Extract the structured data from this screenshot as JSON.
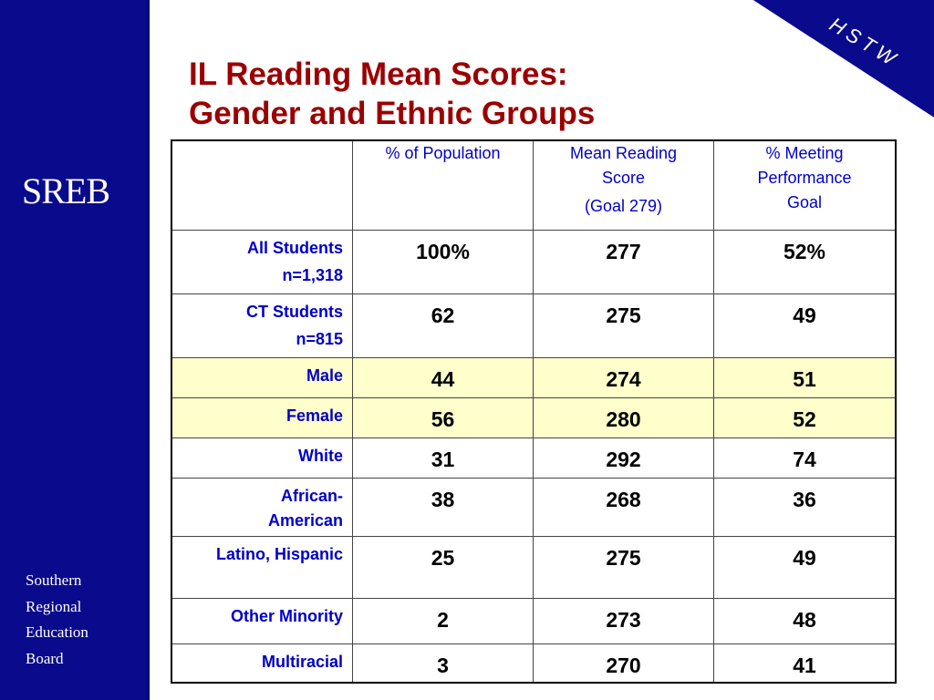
{
  "sidebar": {
    "logo": "SREB",
    "org_lines": [
      "Southern",
      "Regional",
      "Education",
      "Board"
    ]
  },
  "corner": {
    "label": "HSTW"
  },
  "title": {
    "line1": "IL Reading Mean Scores:",
    "line2": "Gender and Ethnic Groups"
  },
  "table": {
    "headers": [
      {
        "lines": [
          ""
        ]
      },
      {
        "lines": [
          "% of Population"
        ]
      },
      {
        "lines": [
          "Mean Reading",
          "Score",
          "(Goal 279)"
        ]
      },
      {
        "lines": [
          "% Meeting",
          "Performance",
          "Goal"
        ]
      }
    ],
    "rows": [
      {
        "label": [
          "All Students",
          "n=1,318"
        ],
        "values": [
          "100%",
          "277",
          "52%"
        ]
      },
      {
        "label": [
          "CT Students",
          "n=815"
        ],
        "values": [
          "62",
          "275",
          "49"
        ]
      },
      {
        "label": [
          "Male"
        ],
        "values": [
          "44",
          "274",
          "51"
        ]
      },
      {
        "label": [
          "Female"
        ],
        "values": [
          "56",
          "280",
          "52"
        ]
      },
      {
        "label": [
          "White"
        ],
        "values": [
          "31",
          "292",
          "74"
        ]
      },
      {
        "label": [
          "African-",
          "American"
        ],
        "values": [
          "38",
          "268",
          "36"
        ]
      },
      {
        "label": [
          "Latino, Hispanic"
        ],
        "values": [
          "25",
          "275",
          "49"
        ]
      },
      {
        "label": [
          "Other Minority"
        ],
        "values": [
          "2",
          "273",
          "48"
        ]
      },
      {
        "label": [
          "Multiracial"
        ],
        "values": [
          "3",
          "270",
          "41"
        ]
      }
    ]
  },
  "colors": {
    "sidebar": "#0a0a8c",
    "title": "#9b0000",
    "label_text": "#0000c8",
    "highlight": "#ffffcc"
  }
}
